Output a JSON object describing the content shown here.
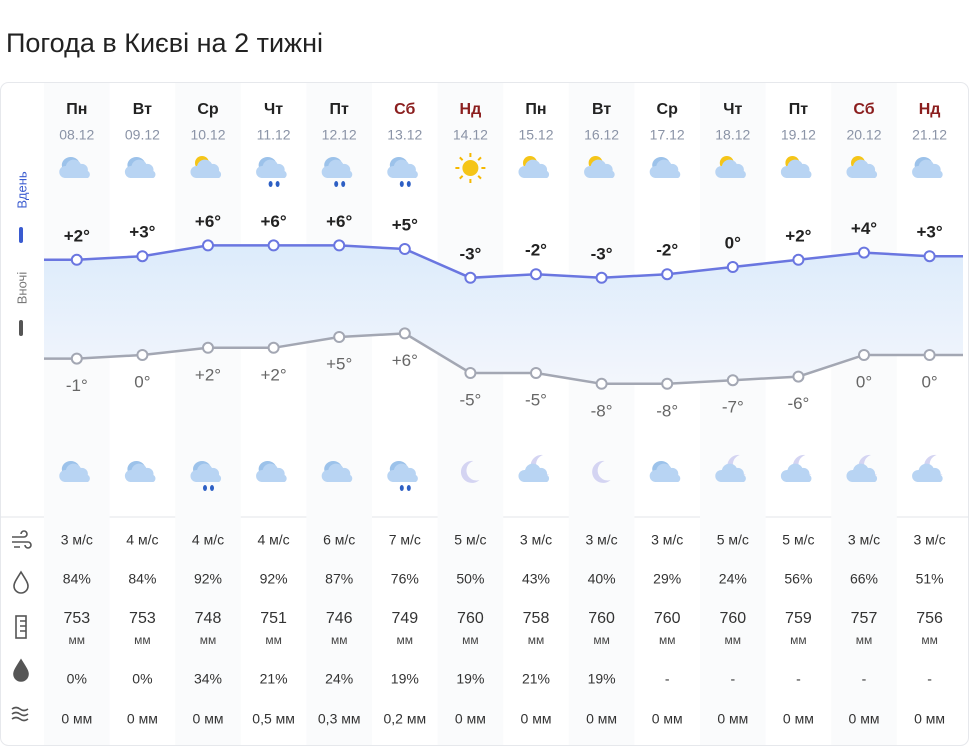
{
  "header": {
    "title": "Погода в Києві на 2 тижні"
  },
  "side_labels": {
    "day": "Вдень",
    "night": "Вночі"
  },
  "pressure_unit": "мм",
  "days": [
    {
      "weekday": "Пн",
      "date": "08.12",
      "weekend": false,
      "day_temp": {
        "value": 2,
        "label": "+2°"
      },
      "night_temp": {
        "value": -1,
        "label": "-1°"
      },
      "wind": "3 м/с",
      "humidity": "84%",
      "pressure": "753",
      "precip_chance": "0%",
      "precip": "0 мм"
    },
    {
      "weekday": "Вт",
      "date": "09.12",
      "weekend": false,
      "day_temp": {
        "value": 3,
        "label": "+3°"
      },
      "night_temp": {
        "value": 0,
        "label": "0°"
      },
      "wind": "4 м/с",
      "humidity": "84%",
      "pressure": "753",
      "precip_chance": "0%",
      "precip": "0 мм"
    },
    {
      "weekday": "Ср",
      "date": "10.12",
      "weekend": false,
      "day_temp": {
        "value": 6,
        "label": "+6°"
      },
      "night_temp": {
        "value": 2,
        "label": "+2°"
      },
      "wind": "4 м/с",
      "humidity": "92%",
      "pressure": "748",
      "precip_chance": "34%",
      "precip": "0 мм"
    },
    {
      "weekday": "Чт",
      "date": "11.12",
      "weekend": false,
      "day_temp": {
        "value": 6,
        "label": "+6°"
      },
      "night_temp": {
        "value": 2,
        "label": "+2°"
      },
      "wind": "4 м/с",
      "humidity": "92%",
      "pressure": "751",
      "precip_chance": "21%",
      "precip": "0,5 мм"
    },
    {
      "weekday": "Пт",
      "date": "12.12",
      "weekend": false,
      "day_temp": {
        "value": 6,
        "label": "+6°"
      },
      "night_temp": {
        "value": 5,
        "label": "+5°"
      },
      "wind": "6 м/с",
      "humidity": "87%",
      "pressure": "746",
      "precip_chance": "24%",
      "precip": "0,3 мм"
    },
    {
      "weekday": "Сб",
      "date": "13.12",
      "weekend": true,
      "day_temp": {
        "value": 5,
        "label": "+5°"
      },
      "night_temp": {
        "value": 6,
        "label": "+6°"
      },
      "wind": "7 м/с",
      "humidity": "76%",
      "pressure": "749",
      "precip_chance": "19%",
      "precip": "0,2 мм"
    },
    {
      "weekday": "Нд",
      "date": "14.12",
      "weekend": true,
      "day_temp": {
        "value": -3,
        "label": "-3°"
      },
      "night_temp": {
        "value": -5,
        "label": "-5°"
      },
      "wind": "5 м/с",
      "humidity": "50%",
      "pressure": "760",
      "precip_chance": "19%",
      "precip": "0 мм"
    },
    {
      "weekday": "Пн",
      "date": "15.12",
      "weekend": false,
      "day_temp": {
        "value": -2,
        "label": "-2°"
      },
      "night_temp": {
        "value": -5,
        "label": "-5°"
      },
      "wind": "3 м/с",
      "humidity": "43%",
      "pressure": "758",
      "precip_chance": "21%",
      "precip": "0 мм"
    },
    {
      "weekday": "Вт",
      "date": "16.12",
      "weekend": false,
      "day_temp": {
        "value": -3,
        "label": "-3°"
      },
      "night_temp": {
        "value": -8,
        "label": "-8°"
      },
      "wind": "3 м/с",
      "humidity": "40%",
      "pressure": "760",
      "precip_chance": "19%",
      "precip": "0 мм"
    },
    {
      "weekday": "Ср",
      "date": "17.12",
      "weekend": false,
      "day_temp": {
        "value": -2,
        "label": "-2°"
      },
      "night_temp": {
        "value": -8,
        "label": "-8°"
      },
      "wind": "3 м/с",
      "humidity": "29%",
      "pressure": "760",
      "precip_chance": "-",
      "precip": "0 мм"
    },
    {
      "weekday": "Чт",
      "date": "18.12",
      "weekend": false,
      "day_temp": {
        "value": 0,
        "label": "0°"
      },
      "night_temp": {
        "value": -7,
        "label": "-7°"
      },
      "wind": "5 м/с",
      "humidity": "24%",
      "pressure": "760",
      "precip_chance": "-",
      "precip": "0 мм"
    },
    {
      "weekday": "Пт",
      "date": "19.12",
      "weekend": false,
      "day_temp": {
        "value": 2,
        "label": "+2°"
      },
      "night_temp": {
        "value": -6,
        "label": "-6°"
      },
      "wind": "5 м/с",
      "humidity": "56%",
      "pressure": "759",
      "precip_chance": "-",
      "precip": "0 мм"
    },
    {
      "weekday": "Сб",
      "date": "20.12",
      "weekend": true,
      "day_temp": {
        "value": 4,
        "label": "+4°"
      },
      "night_temp": {
        "value": 0,
        "label": "0°"
      },
      "wind": "3 м/с",
      "humidity": "66%",
      "pressure": "757",
      "precip_chance": "-",
      "precip": "0 мм"
    },
    {
      "weekday": "Нд",
      "date": "21.12",
      "weekend": true,
      "day_temp": {
        "value": 3,
        "label": "+3°"
      },
      "night_temp": {
        "value": 0,
        "label": "0°"
      },
      "wind": "3 м/с",
      "humidity": "51%",
      "pressure": "756",
      "precip_chance": "-",
      "precip": "0 мм"
    }
  ]
}
